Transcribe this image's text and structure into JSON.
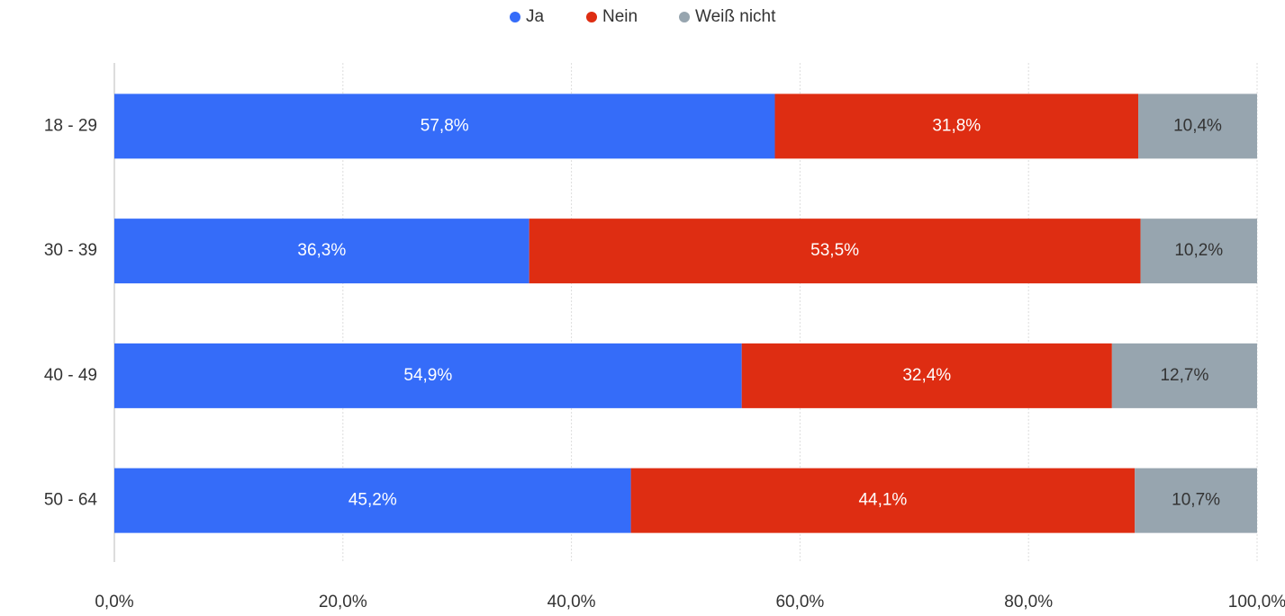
{
  "chart_data": {
    "type": "stacked-barh",
    "categories": [
      "18 - 29",
      "30 - 39",
      "40 - 49",
      "50 - 64"
    ],
    "series": [
      {
        "name": "Ja",
        "color": "#356cf9",
        "values": [
          57.8,
          36.3,
          54.9,
          45.2
        ],
        "value_labels": [
          "57,8%",
          "36,3%",
          "54,9%",
          "45,2%"
        ]
      },
      {
        "name": "Nein",
        "color": "#de2d12",
        "values": [
          31.8,
          53.5,
          32.4,
          44.1
        ],
        "value_labels": [
          "31,8%",
          "53,5%",
          "32,4%",
          "44,1%"
        ]
      },
      {
        "name": "Weiß nicht",
        "color": "#97a5af",
        "values": [
          10.4,
          10.2,
          12.7,
          10.7
        ],
        "value_labels": [
          "10,4%",
          "10,2%",
          "12,7%",
          "10,7%"
        ]
      }
    ],
    "xlim": [
      0,
      100
    ],
    "xticks": [
      {
        "value": 0,
        "label": "0,0%"
      },
      {
        "value": 20,
        "label": "20,0%"
      },
      {
        "value": 40,
        "label": "40,0%"
      },
      {
        "value": 60,
        "label": "60,0%"
      },
      {
        "value": 80,
        "label": "80,0%"
      },
      {
        "value": 100,
        "label": "100,0%"
      }
    ],
    "grid": true,
    "legend": "top"
  }
}
